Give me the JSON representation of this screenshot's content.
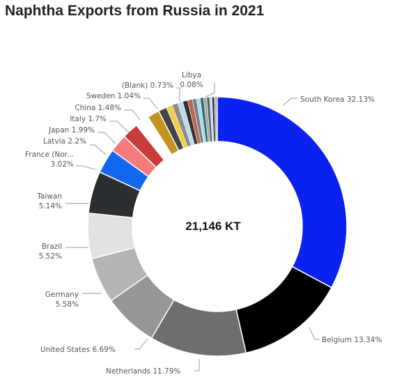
{
  "title": "Naphtha Exports from Russia in 2021",
  "center_label": "21,146 KT",
  "chart_data": {
    "type": "pie",
    "variant": "donut",
    "title": "Naphtha Exports from Russia in 2021",
    "total_label": "21,146 KT",
    "slices": [
      {
        "label": "South Korea",
        "percent": 32.13,
        "color": "#0a22f0"
      },
      {
        "label": "Belgium",
        "percent": 13.34,
        "color": "#000000"
      },
      {
        "label": "Netherlands",
        "percent": 11.79,
        "color": "#6e6e6e"
      },
      {
        "label": "United States",
        "percent": 6.69,
        "color": "#969696"
      },
      {
        "label": "Germany",
        "percent": 5.58,
        "color": "#b4b4b4"
      },
      {
        "label": "Brazil",
        "percent": 5.52,
        "color": "#e2e2e2"
      },
      {
        "label": "Taiwan",
        "percent": 5.14,
        "color": "#2b2f31"
      },
      {
        "label": "France (Nor...",
        "percent": 3.02,
        "color": "#1367ee"
      },
      {
        "label": "Latvia",
        "percent": 2.2,
        "color": "#f77a7a"
      },
      {
        "label": "Japan",
        "percent": 1.99,
        "color": "#c83c3c"
      },
      {
        "label": "Italy",
        "percent": 1.7,
        "color": "#ffffff"
      },
      {
        "label": "China",
        "percent": 1.48,
        "color": "#c0941e"
      },
      {
        "label": "Sweden",
        "percent": 1.04,
        "color": "#454545"
      },
      {
        "label": "(Blank)",
        "percent": 0.73,
        "color": "#f3cd45"
      },
      {
        "label": "",
        "percent": 0.7,
        "color": "#8c8c8c"
      },
      {
        "label": "",
        "percent": 0.65,
        "color": "#b9dde8"
      },
      {
        "label": "",
        "percent": 0.6,
        "color": "#333333"
      },
      {
        "label": "",
        "percent": 0.58,
        "color": "#c0644e"
      },
      {
        "label": "",
        "percent": 0.5,
        "color": "#708090"
      },
      {
        "label": "",
        "percent": 0.45,
        "color": "#add8e6"
      },
      {
        "label": "",
        "percent": 0.42,
        "color": "#2e6f70"
      },
      {
        "label": "",
        "percent": 0.38,
        "color": "#a9a9a9"
      },
      {
        "label": "",
        "percent": 0.35,
        "color": "#4b5f7f"
      },
      {
        "label": "",
        "percent": 0.3,
        "color": "#d3d3d3"
      },
      {
        "label": "",
        "percent": 0.25,
        "color": "#1e1e1e"
      },
      {
        "label": "",
        "percent": 0.2,
        "color": "#8fa2b0"
      },
      {
        "label": "",
        "percent": 0.1,
        "color": "#5a5a5a"
      },
      {
        "label": "Libya",
        "percent": 0.08,
        "color": "#303030"
      }
    ],
    "data_labels": [
      {
        "text": "South Korea 32.13%"
      },
      {
        "text": "Belgium 13.34%"
      },
      {
        "text": "Netherlands 11.79%"
      },
      {
        "text": "United States 6.69%"
      },
      {
        "lines": [
          "Germany",
          "5.58%"
        ]
      },
      {
        "lines": [
          "Brazil",
          "5.52%"
        ]
      },
      {
        "lines": [
          "Taiwan",
          "5.14%"
        ]
      },
      {
        "lines": [
          "France (Nor...",
          "3.02%"
        ]
      },
      {
        "text": "Latvia 2.2%"
      },
      {
        "text": "Japan 1.99%"
      },
      {
        "text": "Italy 1.7%"
      },
      {
        "text": "China 1.48%"
      },
      {
        "text": "Sweden 1.04%"
      },
      {
        "text": "(Blank) 0.73%"
      },
      {
        "lines": [
          "Libya",
          "0.08%"
        ]
      }
    ]
  }
}
